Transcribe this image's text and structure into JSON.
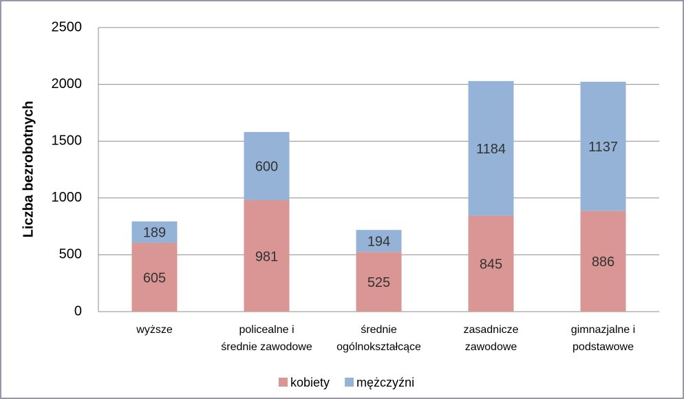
{
  "chart_data": {
    "type": "stacked_bar",
    "y_label": "Liczba bezrobotnych",
    "categories": [
      [
        "wyższe"
      ],
      [
        "policealne i",
        "średnie zawodowe"
      ],
      [
        "średnie",
        "ogólnokształcące"
      ],
      [
        "zasadnicze",
        "zawodowe"
      ],
      [
        "gimnazjalne i",
        "podstawowe"
      ]
    ],
    "series": [
      {
        "name": "kobiety",
        "color": "#d99694",
        "values": [
          605,
          981,
          525,
          845,
          886
        ]
      },
      {
        "name": "mężczyźni",
        "color": "#95b3d7",
        "values": [
          189,
          600,
          194,
          1184,
          1137
        ]
      }
    ],
    "ylim": [
      0,
      2500
    ],
    "yticks": [
      0,
      500,
      1000,
      1500,
      2000,
      2500
    ],
    "grid": true,
    "legend": "bottom"
  }
}
